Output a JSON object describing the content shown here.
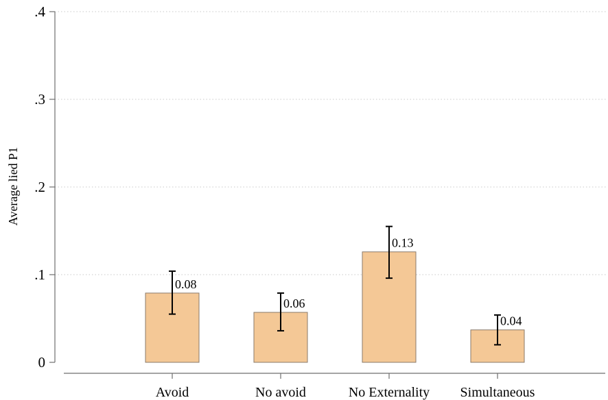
{
  "chart_data": {
    "type": "bar",
    "title": "",
    "xlabel": "",
    "ylabel": "Average lied P1",
    "categories": [
      "Avoid",
      "No avoid",
      "No Externality",
      "Simultaneous"
    ],
    "values": [
      0.079,
      0.057,
      0.126,
      0.037
    ],
    "error_low": [
      0.055,
      0.036,
      0.096,
      0.02
    ],
    "error_high": [
      0.104,
      0.079,
      0.155,
      0.054
    ],
    "data_labels": [
      "0.08",
      "0.06",
      "0.13",
      "0.04"
    ],
    "yticks": [
      0,
      0.1,
      0.2,
      0.3,
      0.4
    ],
    "ytick_labels": [
      "0",
      ".1",
      ".2",
      ".3",
      ".4"
    ],
    "ylim": [
      0,
      0.4
    ],
    "grid": true,
    "legend": "none",
    "colors": {
      "bar_fill": "#f4c896",
      "bar_edge": "#8a7a6a",
      "error_bar": "#000000",
      "grid": "#c8c8c8",
      "axis": "#6e6e6e"
    }
  }
}
